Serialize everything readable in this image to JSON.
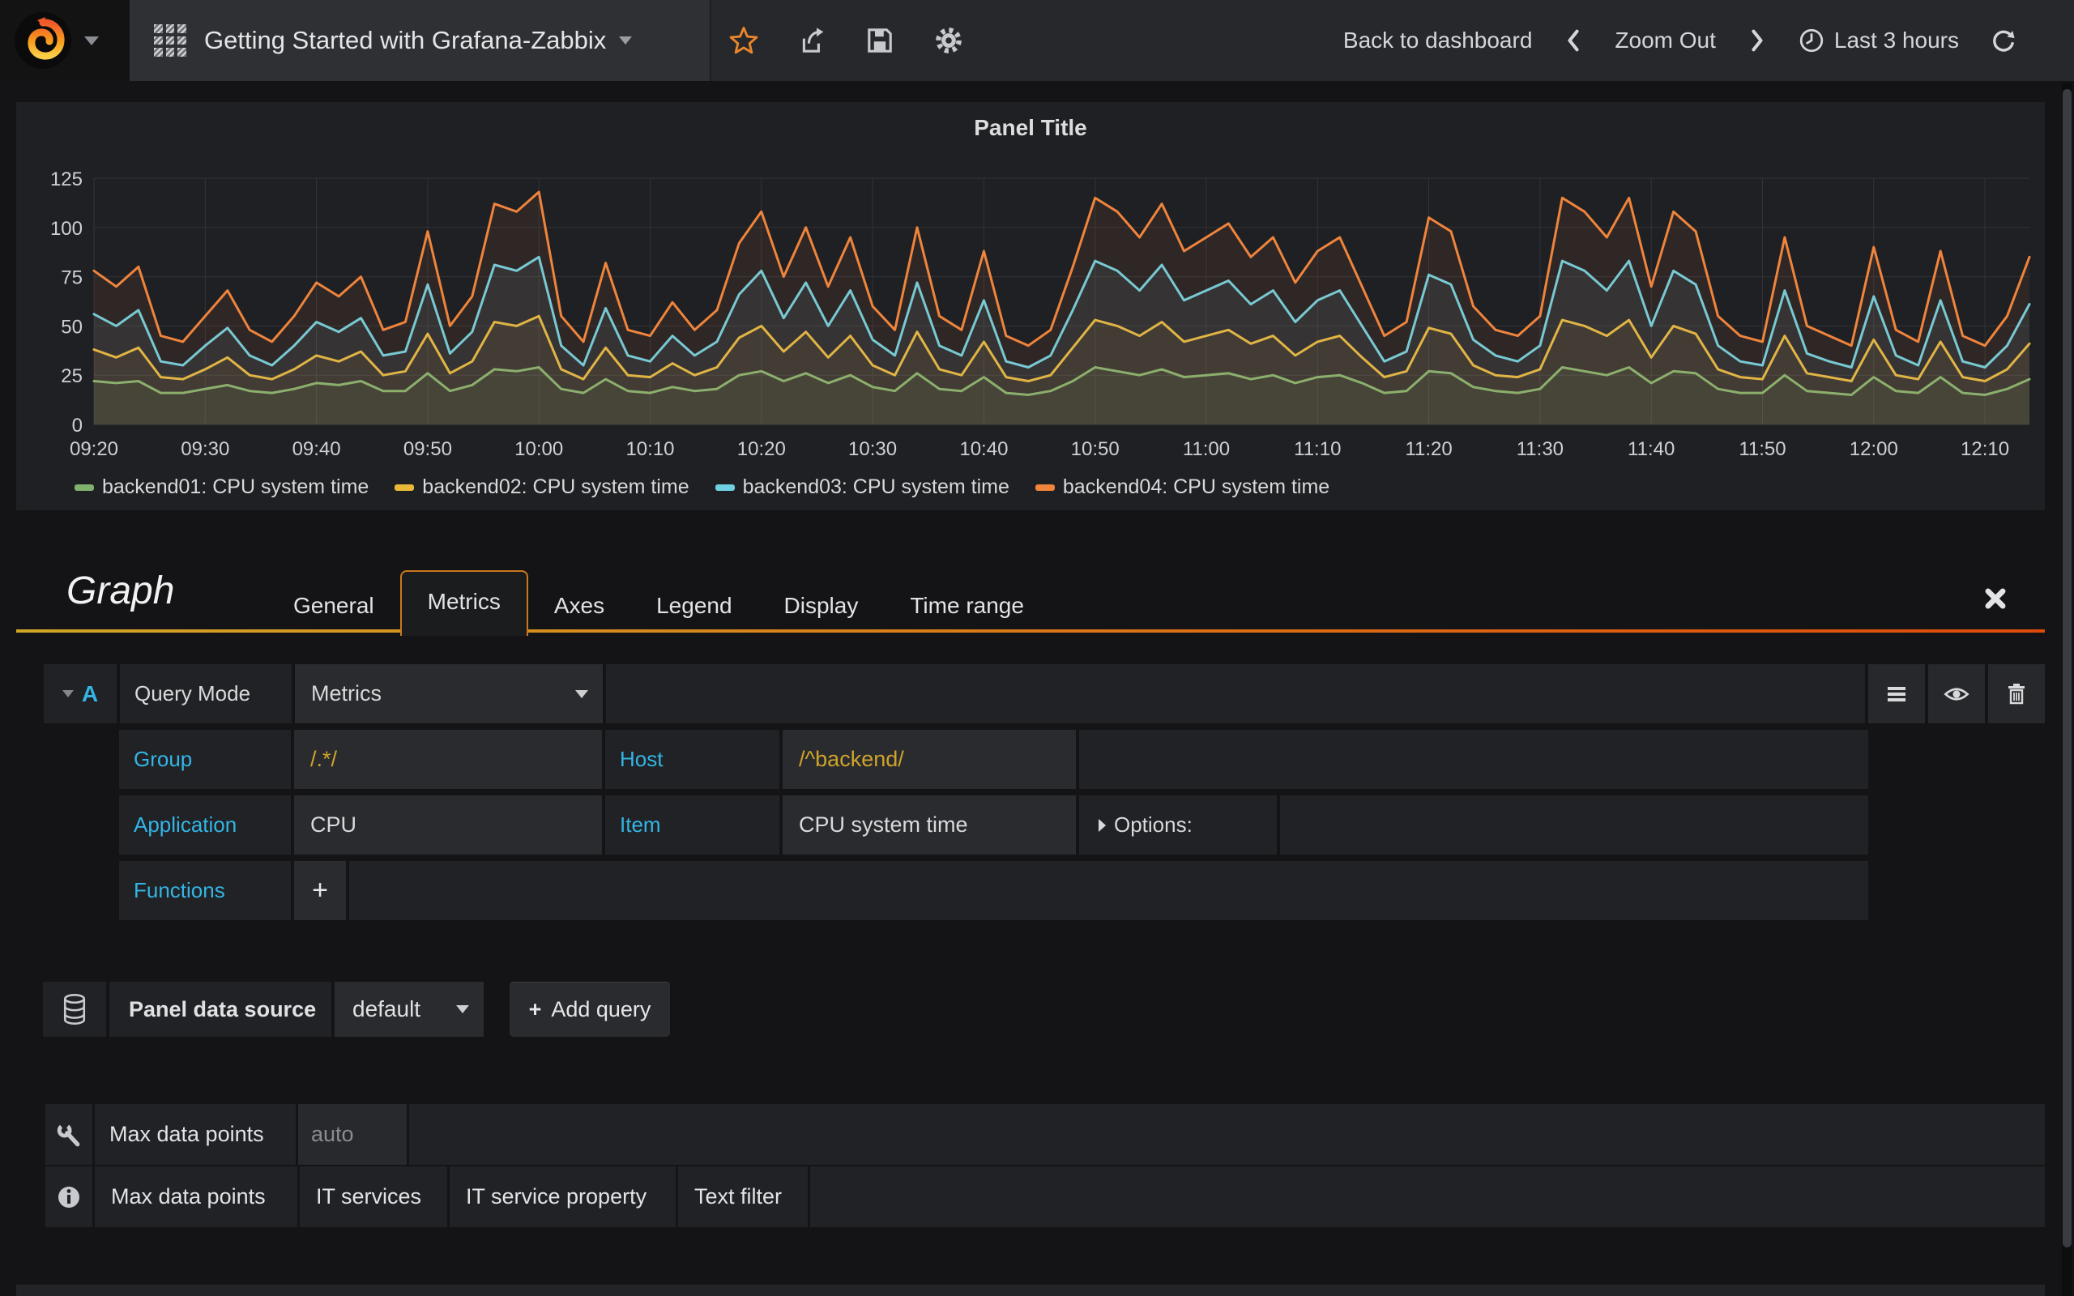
{
  "navbar": {
    "dashboard_title": "Getting Started with Grafana-Zabbix",
    "back_to_dashboard": "Back to dashboard",
    "zoom_out": "Zoom Out",
    "time_range": "Last 3 hours"
  },
  "panel": {
    "title": "Panel Title"
  },
  "chart_data": {
    "type": "line",
    "title": "Panel Title",
    "xlabel": "",
    "ylabel": "",
    "ylim": [
      0,
      125
    ],
    "y_ticks": [
      0,
      25,
      50,
      75,
      100,
      125
    ],
    "x_ticks": [
      "09:20",
      "09:30",
      "09:40",
      "09:50",
      "10:00",
      "10:10",
      "10:20",
      "10:30",
      "10:40",
      "10:50",
      "11:00",
      "11:10",
      "11:20",
      "11:30",
      "11:40",
      "11:50",
      "12:00",
      "12:10"
    ],
    "grid": true,
    "legend_position": "bottom",
    "series": [
      {
        "name": "backend01: CPU system time",
        "color": "#7eb26d",
        "values": [
          22,
          21,
          22,
          16,
          16,
          18,
          20,
          17,
          16,
          18,
          21,
          20,
          22,
          17,
          17,
          26,
          17,
          20,
          28,
          27,
          29,
          18,
          16,
          23,
          17,
          16,
          19,
          17,
          18,
          25,
          27,
          22,
          26,
          21,
          25,
          19,
          17,
          26,
          18,
          17,
          24,
          16,
          15,
          17,
          22,
          29,
          27,
          25,
          28,
          24,
          25,
          26,
          23,
          25,
          21,
          24,
          25,
          21,
          16,
          17,
          27,
          26,
          19,
          17,
          16,
          18,
          29,
          27,
          25,
          29,
          21,
          27,
          26,
          18,
          16,
          16,
          25,
          17,
          16,
          15,
          24,
          17,
          16,
          24,
          16,
          15,
          18,
          23
        ]
      },
      {
        "name": "backend02: CPU system time",
        "color": "#eab839",
        "values": [
          38,
          34,
          39,
          24,
          23,
          28,
          34,
          25,
          23,
          28,
          35,
          32,
          37,
          25,
          27,
          46,
          26,
          32,
          52,
          50,
          55,
          28,
          23,
          39,
          25,
          24,
          31,
          25,
          29,
          44,
          50,
          37,
          47,
          34,
          45,
          30,
          25,
          47,
          28,
          25,
          42,
          24,
          22,
          25,
          39,
          53,
          50,
          45,
          52,
          42,
          45,
          48,
          41,
          45,
          35,
          42,
          45,
          34,
          24,
          27,
          49,
          46,
          30,
          25,
          24,
          28,
          53,
          50,
          45,
          53,
          34,
          50,
          46,
          28,
          24,
          23,
          45,
          26,
          24,
          22,
          43,
          25,
          23,
          42,
          24,
          22,
          28,
          41
        ]
      },
      {
        "name": "backend03: CPU system time",
        "color": "#6ed0e0",
        "values": [
          56,
          50,
          58,
          32,
          30,
          40,
          49,
          35,
          30,
          40,
          52,
          47,
          54,
          35,
          37,
          71,
          36,
          47,
          81,
          78,
          85,
          40,
          30,
          59,
          35,
          32,
          45,
          35,
          42,
          66,
          78,
          54,
          72,
          50,
          68,
          43,
          35,
          72,
          40,
          35,
          63,
          32,
          29,
          35,
          58,
          83,
          78,
          68,
          81,
          63,
          68,
          73,
          61,
          68,
          52,
          63,
          68,
          50,
          32,
          37,
          76,
          71,
          43,
          35,
          32,
          40,
          83,
          78,
          68,
          83,
          50,
          78,
          71,
          40,
          32,
          30,
          68,
          36,
          32,
          29,
          65,
          35,
          30,
          63,
          32,
          29,
          40,
          61
        ]
      },
      {
        "name": "backend04: CPU system time",
        "color": "#ef843c",
        "values": [
          78,
          70,
          80,
          45,
          42,
          55,
          68,
          48,
          42,
          55,
          72,
          65,
          75,
          48,
          52,
          98,
          50,
          65,
          112,
          108,
          118,
          55,
          42,
          82,
          48,
          45,
          62,
          48,
          58,
          92,
          108,
          75,
          100,
          70,
          95,
          60,
          48,
          100,
          55,
          48,
          88,
          45,
          40,
          48,
          80,
          115,
          108,
          95,
          112,
          88,
          95,
          102,
          85,
          95,
          72,
          88,
          95,
          70,
          45,
          52,
          105,
          98,
          60,
          48,
          45,
          55,
          115,
          108,
          95,
          115,
          70,
          108,
          98,
          55,
          45,
          42,
          95,
          50,
          45,
          40,
          90,
          48,
          42,
          88,
          45,
          40,
          55,
          85
        ]
      }
    ]
  },
  "editor": {
    "panel_type_title": "Graph",
    "tabs": [
      {
        "label": "General",
        "active": false
      },
      {
        "label": "Metrics",
        "active": true
      },
      {
        "label": "Axes",
        "active": false
      },
      {
        "label": "Legend",
        "active": false
      },
      {
        "label": "Display",
        "active": false
      },
      {
        "label": "Time range",
        "active": false
      }
    ],
    "query": {
      "letter": "A",
      "mode_label": "Query Mode",
      "mode_value": "Metrics",
      "group_label": "Group",
      "group_value": "/.*/",
      "host_label": "Host",
      "host_value": "/^backend/",
      "application_label": "Application",
      "application_value": "CPU",
      "item_label": "Item",
      "item_value": "CPU system time",
      "options_label": "Options:",
      "functions_label": "Functions"
    },
    "datasource": {
      "label": "Panel data source",
      "value": "default",
      "add_query": "Add query",
      "plus": "+"
    },
    "options_row": {
      "label": "Max data points",
      "placeholder": "auto"
    },
    "help_tabs": [
      "Max data points",
      "IT services",
      "IT service property",
      "Text filter"
    ]
  },
  "colors": {
    "accent_orange": "#e8862c",
    "label_blue": "#33b5e5",
    "regex_gold": "#cfa32b",
    "tab_underline_left": "#d2a625",
    "tab_underline_right": "#df4a0b"
  }
}
